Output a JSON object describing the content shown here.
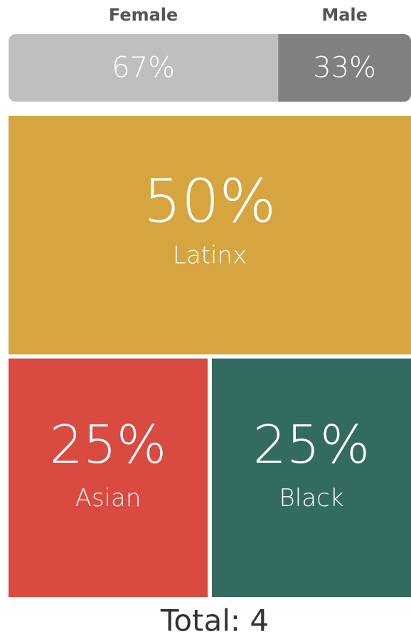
{
  "chart_data": [
    {
      "type": "stacked-bar",
      "series": [
        {
          "name": "Female",
          "color": "#bfbfbf",
          "values": [
            67
          ],
          "value_labels": [
            "67%"
          ]
        },
        {
          "name": "Male",
          "color": "#808080",
          "values": [
            33
          ],
          "value_labels": [
            "33%"
          ]
        }
      ]
    },
    {
      "type": "treemap",
      "categories": [
        "Latinx",
        "Asian",
        "Black"
      ],
      "values": [
        50,
        25,
        25
      ],
      "value_labels": [
        "50%",
        "25%",
        "25%"
      ],
      "colors": [
        "#d6a53f",
        "#d94a41",
        "#336b60"
      ],
      "footer": "Total: 4"
    }
  ]
}
